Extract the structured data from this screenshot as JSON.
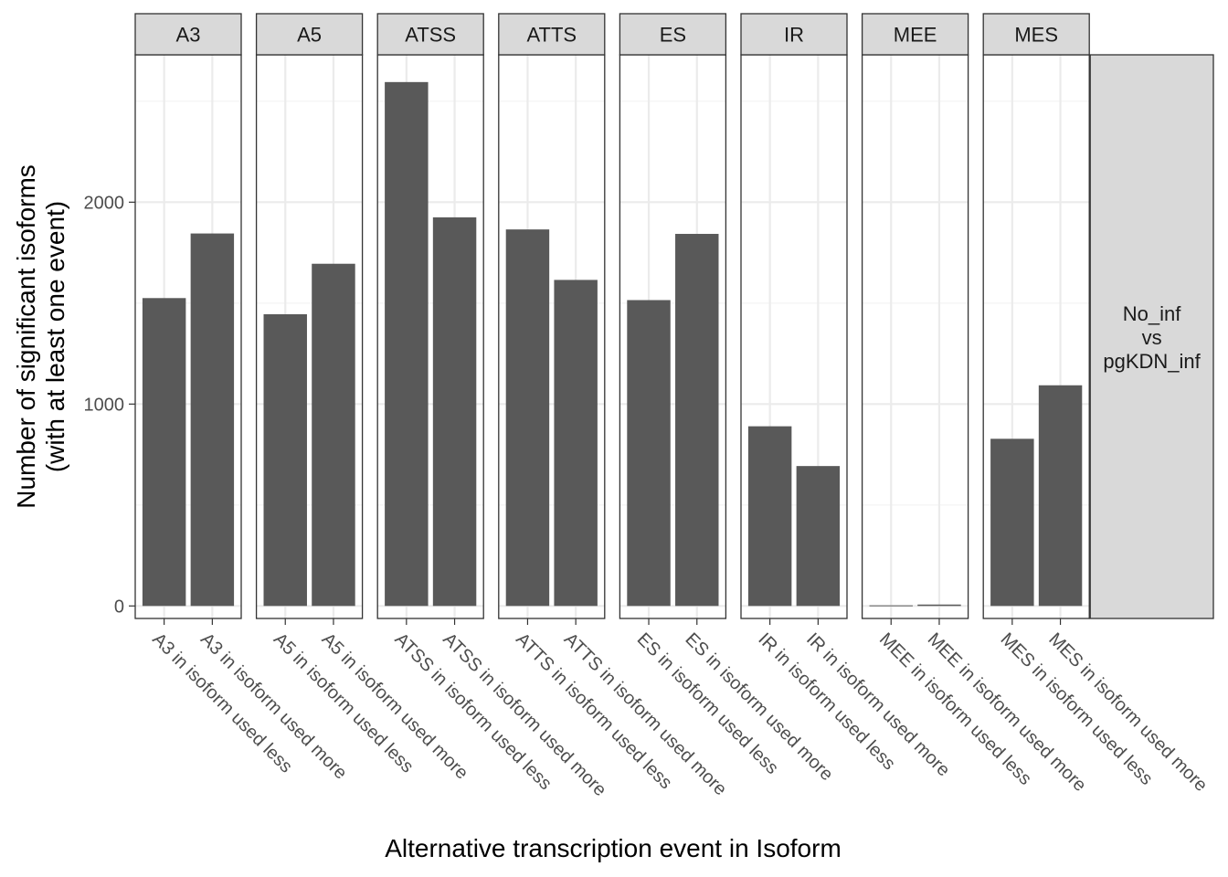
{
  "chart_data": {
    "type": "bar",
    "title": "",
    "xlabel": "Alternative transcription event in Isoform",
    "ylabel": [
      "Number of significant isoforms",
      "(with at least one event)"
    ],
    "ylim": [
      -62,
      2730
    ],
    "yticks": [
      0,
      1000,
      2000
    ],
    "grid": true,
    "row_strip_lines": [
      "No_inf",
      "vs",
      "pgKDN_inf"
    ],
    "facets": [
      {
        "name": "A3",
        "categories": [
          "A3 in isoform used less",
          "A3 in isoform used more"
        ],
        "values": [
          1525,
          1845
        ]
      },
      {
        "name": "A5",
        "categories": [
          "A5 in isoform used less",
          "A5 in isoform used more"
        ],
        "values": [
          1445,
          1695
        ]
      },
      {
        "name": "ATSS",
        "categories": [
          "ATSS in isoform used less",
          "ATSS in isoform used more"
        ],
        "values": [
          2595,
          1925
        ]
      },
      {
        "name": "ATTS",
        "categories": [
          "ATTS in isoform used less",
          "ATTS in isoform used more"
        ],
        "values": [
          1865,
          1615
        ]
      },
      {
        "name": "ES",
        "categories": [
          "ES in isoform used less",
          "ES in isoform used more"
        ],
        "values": [
          1515,
          1843
        ]
      },
      {
        "name": "IR",
        "categories": [
          "IR in isoform used less",
          "IR in isoform used more"
        ],
        "values": [
          890,
          693
        ]
      },
      {
        "name": "MEE",
        "categories": [
          "MEE in isoform used less",
          "MEE in isoform used more"
        ],
        "values": [
          3,
          7
        ]
      },
      {
        "name": "MES",
        "categories": [
          "MES in isoform used less",
          "MES in isoform used more"
        ],
        "values": [
          828,
          1093
        ]
      }
    ],
    "colors": {
      "bar": "#595959",
      "strip_fill": "#d9d9d9",
      "panel_border": "#333333",
      "grid_major": "#ebebeb",
      "grid_minor": "#f3f3f3"
    }
  }
}
